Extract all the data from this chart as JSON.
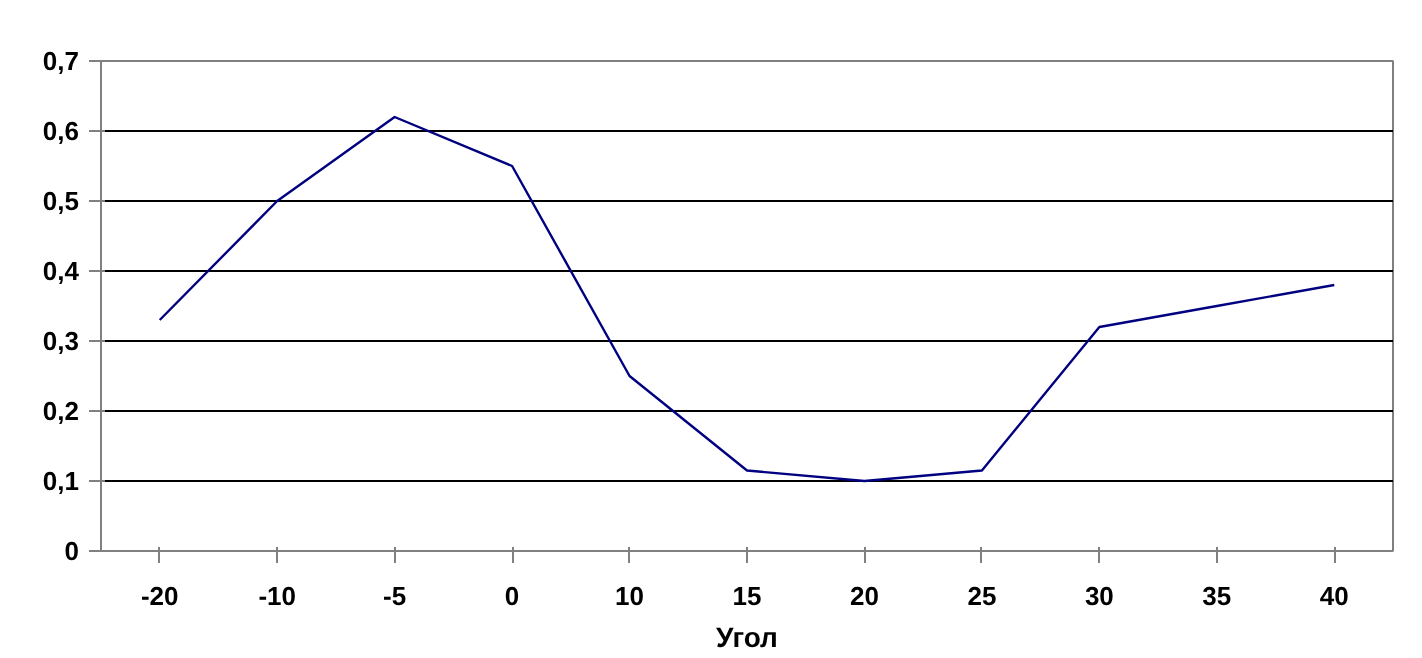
{
  "chart_data": {
    "type": "line",
    "xlabel": "Угол",
    "categories": [
      "-20",
      "-10",
      "-5",
      "0",
      "10",
      "15",
      "20",
      "25",
      "30",
      "35",
      "40"
    ],
    "series": [
      {
        "color": "#000080",
        "values": [
          0.33,
          0.5,
          0.62,
          0.55,
          0.25,
          0.115,
          0.1,
          0.115,
          0.32,
          0.35,
          0.38
        ]
      }
    ],
    "ylim": [
      0,
      0.7
    ],
    "yticks": [
      {
        "value": 0,
        "label": "0"
      },
      {
        "value": 0.1,
        "label": "0,1"
      },
      {
        "value": 0.2,
        "label": "0,2"
      },
      {
        "value": 0.3,
        "label": "0,3"
      },
      {
        "value": 0.4,
        "label": "0,4"
      },
      {
        "value": 0.5,
        "label": "0,5"
      },
      {
        "value": 0.6,
        "label": "0,6"
      },
      {
        "value": 0.7,
        "label": "0,7"
      }
    ],
    "grid": "y",
    "marker": "none",
    "line_style": "solid"
  }
}
